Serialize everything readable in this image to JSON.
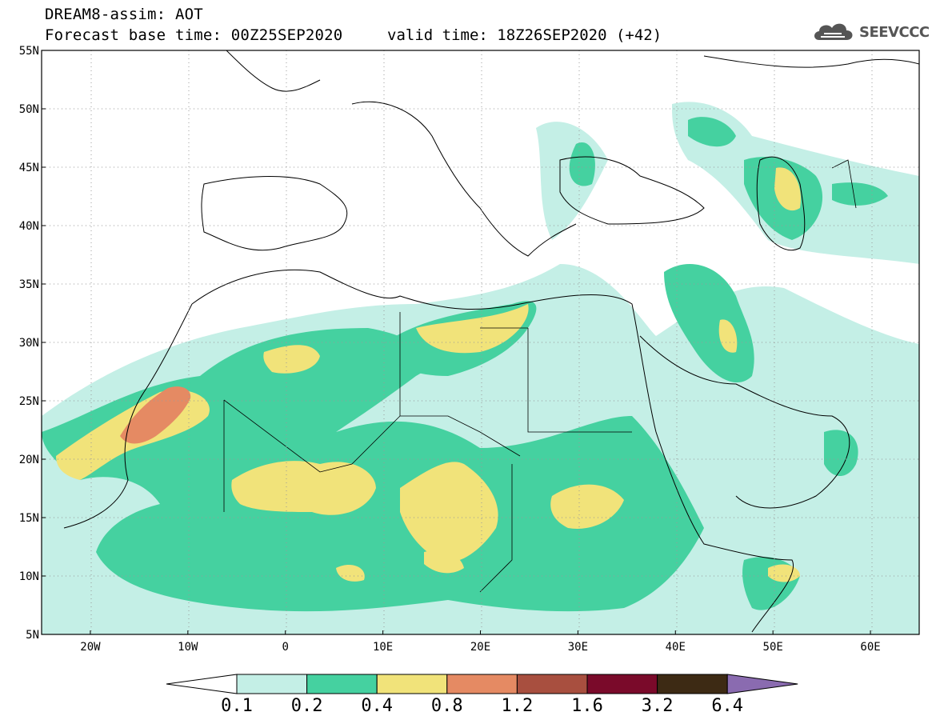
{
  "header": {
    "title": "DREAM8-assim: AOT",
    "base_time": "Forecast base time: 00Z25SEP2020",
    "valid_time": "valid time: 18Z26SEP2020 (+42)",
    "logo_text": "SEEVCCC",
    "logo_icon": "cloud-icon"
  },
  "map": {
    "lon_ticks": [
      "20W",
      "10W",
      "0",
      "10E",
      "20E",
      "30E",
      "40E",
      "50E",
      "60E"
    ],
    "lat_ticks": [
      "55N",
      "50N",
      "45N",
      "40N",
      "35N",
      "30N",
      "25N",
      "20N",
      "15N",
      "10N",
      "5N"
    ],
    "lon_range": [
      -25,
      65
    ],
    "lat_range": [
      5,
      55
    ],
    "grid": "dotted"
  },
  "colorbar": {
    "labels": [
      "0.1",
      "0.2",
      "0.4",
      "0.8",
      "1.2",
      "1.6",
      "3.2",
      "6.4"
    ],
    "colors": [
      "#ffffff",
      "#c4efe6",
      "#45d1a0",
      "#f1e37a",
      "#e58a63",
      "#a84f3f",
      "#7a0a2a",
      "#3d2a14",
      "#8a6bb0"
    ]
  }
}
